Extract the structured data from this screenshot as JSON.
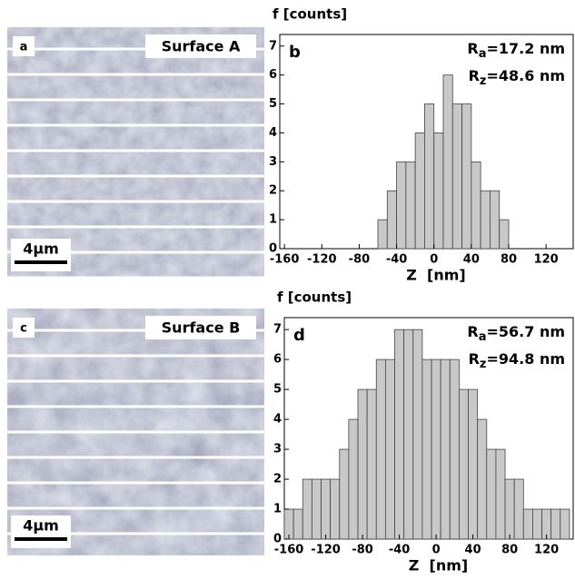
{
  "panels": [
    {
      "letter": "a",
      "label": "Surface A",
      "scale": "4μm"
    },
    {
      "letter": "c",
      "label": "Surface B",
      "scale": "4μm"
    }
  ],
  "chart_data": [
    {
      "type": "histogram",
      "letter": "b",
      "y_label": "f [counts]",
      "x_label": "Z  [nm]",
      "annotations": [
        {
          "symbol": "R",
          "sub": "a",
          "text": "=17.2 nm"
        },
        {
          "symbol": "R",
          "sub": "z",
          "text": "=48.6 nm"
        }
      ],
      "bins": [
        -60,
        -50,
        -40,
        -30,
        -20,
        -10,
        0,
        10,
        20,
        30,
        40,
        50,
        60,
        70,
        80
      ],
      "values": [
        1,
        2,
        3,
        3,
        4,
        5,
        4,
        6,
        5,
        5,
        3,
        2,
        2,
        1
      ],
      "color": "#c8c8c8",
      "xlim": [
        -165,
        150
      ],
      "xticks": [
        -160,
        -120,
        -80,
        -40,
        0,
        40,
        80,
        120
      ],
      "ylim": [
        0,
        7.4
      ],
      "yticks": [
        0,
        1,
        2,
        3,
        4,
        5,
        6,
        7
      ]
    },
    {
      "type": "histogram",
      "letter": "d",
      "y_label": "f [counts]",
      "x_label": "Z  [nm]",
      "annotations": [
        {
          "symbol": "R",
          "sub": "a",
          "text": "=56.7 nm"
        },
        {
          "symbol": "R",
          "sub": "z",
          "text": "=94.8 nm"
        }
      ],
      "bins": [
        -165,
        -155,
        -145,
        -135,
        -125,
        -115,
        -105,
        -95,
        -85,
        -75,
        -65,
        -55,
        -45,
        -35,
        -25,
        -15,
        -5,
        5,
        15,
        25,
        35,
        45,
        55,
        65,
        75,
        85,
        95,
        105,
        115,
        125,
        135,
        145
      ],
      "values": [
        1,
        1,
        2,
        2,
        2,
        2,
        3,
        4,
        5,
        5,
        6,
        6,
        7,
        7,
        7,
        6,
        6,
        6,
        6,
        5,
        5,
        4,
        3,
        3,
        2,
        2,
        1,
        1,
        1,
        1,
        1
      ],
      "color": "#c8c8c8",
      "xlim": [
        -165,
        150
      ],
      "xticks": [
        -160,
        -120,
        -80,
        -40,
        0,
        40,
        80,
        120
      ],
      "ylim": [
        0,
        7.4
      ],
      "yticks": [
        0,
        1,
        2,
        3,
        4,
        5,
        6,
        7
      ]
    }
  ]
}
